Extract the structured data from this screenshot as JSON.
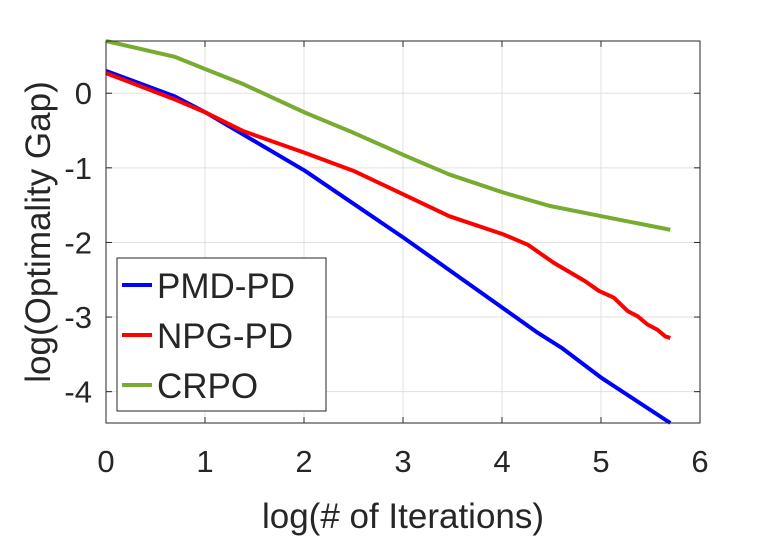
{
  "chart_data": {
    "type": "line",
    "title": "",
    "xlabel": "log(# of Iterations)",
    "ylabel": "log(Optimality Gap)",
    "xlim": [
      0,
      6
    ],
    "ylim": [
      -4.42,
      0.7
    ],
    "xticks": [
      "0",
      "1",
      "2",
      "3",
      "4",
      "5",
      "6"
    ],
    "yticks": [
      "0",
      "-1",
      "-2",
      "-3",
      "-4"
    ],
    "grid": true,
    "legend_position": "bottom-left",
    "series": [
      {
        "name": "PMD-PD",
        "color": "#0000FF",
        "x": [
          0,
          0.69,
          1.01,
          2.01,
          3.01,
          4.01,
          4.36,
          4.6,
          5.01,
          5.7
        ],
        "y": [
          0.3,
          -0.04,
          -0.26,
          -1.04,
          -1.94,
          -2.88,
          -3.21,
          -3.41,
          -3.82,
          -4.42
        ]
      },
      {
        "name": "NPG-PD",
        "color": "#FF0000",
        "x": [
          0,
          0.69,
          1.01,
          1.39,
          2.01,
          2.5,
          3.01,
          3.47,
          4.01,
          4.26,
          4.52,
          4.84,
          4.98,
          5.13,
          5.27,
          5.37,
          5.47,
          5.57,
          5.65,
          5.7
        ],
        "y": [
          0.27,
          -0.08,
          -0.26,
          -0.51,
          -0.8,
          -1.04,
          -1.36,
          -1.65,
          -1.89,
          -2.03,
          -2.27,
          -2.52,
          -2.65,
          -2.74,
          -2.92,
          -2.99,
          -3.1,
          -3.17,
          -3.26,
          -3.28
        ]
      },
      {
        "name": "CRPO",
        "color": "#77AC30",
        "x": [
          0,
          0.69,
          1.01,
          1.39,
          2.01,
          2.5,
          3.01,
          3.47,
          4.01,
          4.48,
          5.01,
          5.7
        ],
        "y": [
          0.7,
          0.49,
          0.32,
          0.12,
          -0.26,
          -0.53,
          -0.83,
          -1.09,
          -1.33,
          -1.51,
          -1.65,
          -1.83
        ]
      }
    ]
  }
}
